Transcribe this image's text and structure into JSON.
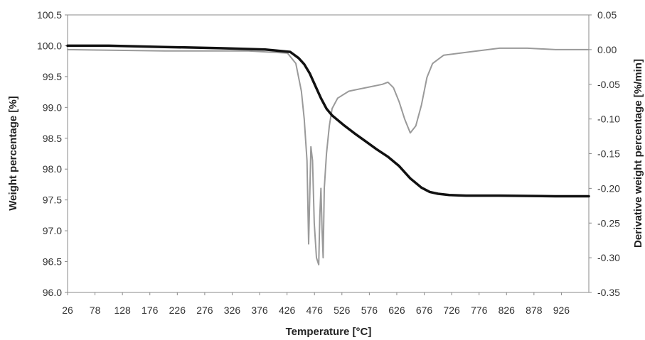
{
  "chart_data": {
    "type": "line",
    "title": "",
    "xlabel": "Temperature [°C]",
    "ylabel": "Weight percentage [%]",
    "y2label": "Derivative weight percentage [%/min]",
    "xlim": [
      26,
      960
    ],
    "ylim": [
      96.0,
      100.5
    ],
    "y2lim": [
      -0.35,
      0.05
    ],
    "x_ticks": [
      "26",
      "78",
      "128",
      "176",
      "226",
      "276",
      "326",
      "376",
      "426",
      "476",
      "526",
      "576",
      "626",
      "676",
      "726",
      "776",
      "826",
      "878",
      "926"
    ],
    "y_ticks": [
      "100.5",
      "100.0",
      "99.5",
      "99.0",
      "98.5",
      "98.0",
      "97.5",
      "97.0",
      "96.5",
      "96.0"
    ],
    "y2_ticks": [
      "0.05",
      "0.00",
      "-0.05",
      "-0.10",
      "-0.15",
      "-0.20",
      "-0.25",
      "-0.30",
      "-0.35"
    ],
    "grid": false,
    "legend": "none",
    "colors": {
      "weight": "#111111",
      "derivative": "#9a9a9a",
      "frame": "#888888"
    },
    "series": [
      {
        "axis": "left",
        "x": [
          26,
          100,
          200,
          300,
          380,
          425,
          440,
          450,
          460,
          470,
          480,
          490,
          500,
          520,
          540,
          560,
          580,
          600,
          620,
          640,
          660,
          675,
          690,
          710,
          740,
          800,
          900,
          960
        ],
        "y": [
          100.0,
          100.0,
          99.98,
          99.96,
          99.94,
          99.9,
          99.8,
          99.7,
          99.55,
          99.35,
          99.15,
          98.98,
          98.87,
          98.72,
          98.58,
          98.45,
          98.32,
          98.2,
          98.05,
          97.85,
          97.7,
          97.63,
          97.6,
          97.58,
          97.57,
          97.57,
          97.56,
          97.56
        ]
      },
      {
        "axis": "right",
        "x": [
          26,
          200,
          350,
          420,
          435,
          445,
          450,
          455,
          458,
          462,
          465,
          468,
          472,
          476,
          478,
          480,
          482,
          484,
          486,
          490,
          495,
          500,
          510,
          530,
          560,
          590,
          600,
          610,
          620,
          630,
          640,
          650,
          660,
          670,
          680,
          700,
          750,
          800,
          850,
          900,
          960
        ],
        "y": [
          0.0,
          -0.002,
          -0.002,
          -0.005,
          -0.02,
          -0.06,
          -0.1,
          -0.16,
          -0.28,
          -0.14,
          -0.16,
          -0.25,
          -0.3,
          -0.31,
          -0.24,
          -0.2,
          -0.26,
          -0.3,
          -0.2,
          -0.15,
          -0.11,
          -0.085,
          -0.07,
          -0.06,
          -0.055,
          -0.05,
          -0.047,
          -0.055,
          -0.075,
          -0.1,
          -0.12,
          -0.11,
          -0.08,
          -0.04,
          -0.02,
          -0.008,
          -0.003,
          0.002,
          0.002,
          0.0,
          0.0
        ]
      }
    ]
  }
}
